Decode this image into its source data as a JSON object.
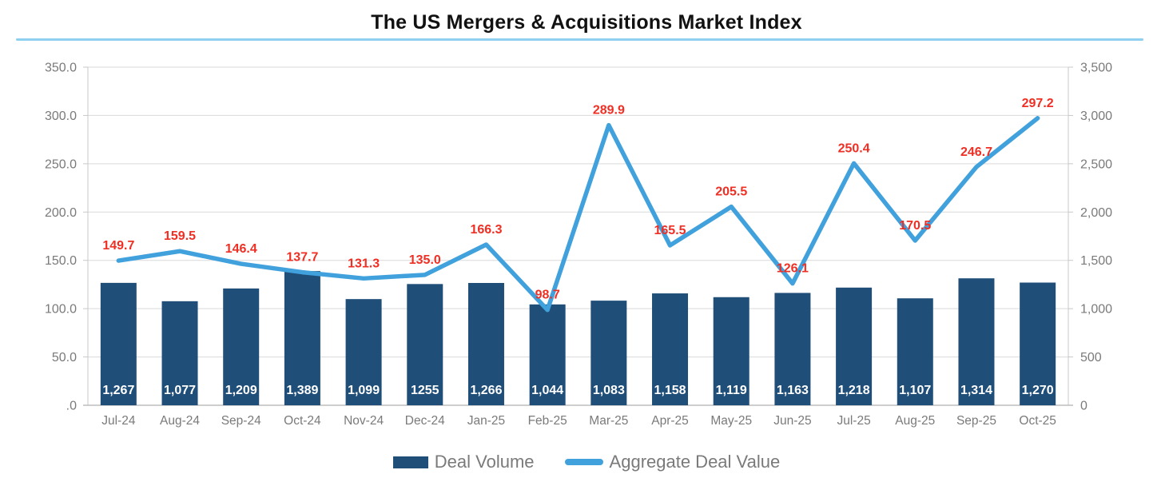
{
  "chart_data": {
    "type": "combo",
    "title": "The US Mergers & Acquisitions Market Index",
    "title_rule_color": "#8FCFF0",
    "grid": true,
    "grid_color": "#D9D9D9",
    "axis_line_color": "#C9C9C9",
    "axis_text_color": "#7A7A7A",
    "legend_position": "bottom",
    "categories": [
      "Jul-24",
      "Aug-24",
      "Sep-24",
      "Oct-24",
      "Nov-24",
      "Dec-24",
      "Jan-25",
      "Feb-25",
      "Mar-25",
      "Apr-25",
      "May-25",
      "Jun-25",
      "Jul-25",
      "Aug-25",
      "Sep-25",
      "Oct-25"
    ],
    "left_axis": {
      "min": 0,
      "max": 350,
      "tick_labels": [
        "350.0",
        "300.0",
        "250.0",
        "200.0",
        "150.0",
        "100.0",
        "50.0",
        ".0"
      ]
    },
    "right_axis": {
      "min": 0,
      "max": 3500,
      "tick_labels": [
        "3,500",
        "3,000",
        "2,500",
        "2,000",
        "1,500",
        "1,000",
        "500",
        "0"
      ]
    },
    "series": [
      {
        "name": "Deal Volume",
        "type": "bar",
        "axis": "right",
        "color": "#1F4E79",
        "label_color": "#FFFFFF",
        "values": [
          1267,
          1077,
          1209,
          1389,
          1099,
          1255,
          1266,
          1044,
          1083,
          1158,
          1119,
          1163,
          1218,
          1107,
          1314,
          1270
        ],
        "labels": [
          "1,267",
          "1,077",
          "1,209",
          "1,389",
          "1,099",
          "1255",
          "1,266",
          "1,044",
          "1,083",
          "1,158",
          "1,119",
          "1,163",
          "1,218",
          "1,107",
          "1,314",
          "1,270"
        ]
      },
      {
        "name": "Aggregate Deal Value",
        "type": "line",
        "axis": "left",
        "color": "#41A1DC",
        "label_color": "#EF2F24",
        "values": [
          149.7,
          159.5,
          146.4,
          137.7,
          131.3,
          135.0,
          166.3,
          98.7,
          289.9,
          165.5,
          205.5,
          126.1,
          250.4,
          170.5,
          246.7,
          297.2
        ],
        "labels": [
          "149.7",
          "159.5",
          "146.4",
          "137.7",
          "131.3",
          "135.0",
          "166.3",
          "98.7",
          "289.9",
          "165.5",
          "205.5",
          "126.1",
          "250.4",
          "170.5",
          "246.7",
          "297.2"
        ]
      }
    ]
  }
}
